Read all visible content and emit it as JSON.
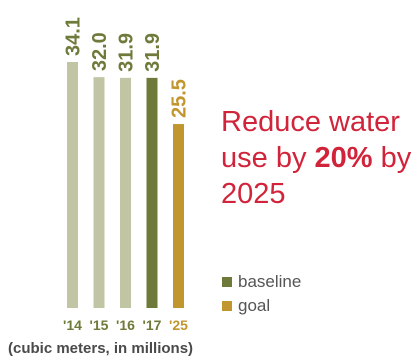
{
  "chart_data": {
    "type": "bar",
    "categories": [
      "'14",
      "'15",
      "'16",
      "'17",
      "'25"
    ],
    "values": [
      34.1,
      32.0,
      31.9,
      31.9,
      25.5
    ],
    "value_labels": [
      "34.1",
      "32.0",
      "31.9",
      "31.9",
      "25.5"
    ],
    "bar_colors": [
      "#c2c5a4",
      "#c2c5a4",
      "#c2c5a4",
      "#6e7a3a",
      "#c2962f"
    ],
    "label_colors": [
      "#6e7a3a",
      "#6e7a3a",
      "#6e7a3a",
      "#6e7a3a",
      "#c2962f"
    ],
    "ylim": [
      0,
      34.1
    ],
    "unit_note": "(cubic meters, in millions)",
    "legend": [
      {
        "label": "baseline",
        "color": "#6e7a3a"
      },
      {
        "label": "goal",
        "color": "#c2962f"
      }
    ],
    "legend_position": "right"
  },
  "headline": {
    "part1": "Reduce water use by ",
    "emphasis": "20%",
    "part2": " by 2025",
    "color": "#d1243a"
  }
}
